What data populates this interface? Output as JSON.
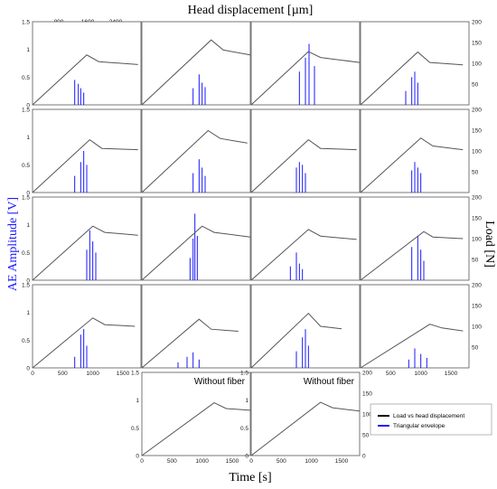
{
  "figure": {
    "title": "Head displacement [µm]",
    "xlabel": "Time [s]",
    "ylabel_left": "AE Amplitude [V]",
    "ylabel_right": "Load [N]",
    "top_axis_ticks": [
      "800",
      "1600",
      "2400"
    ],
    "legend": [
      {
        "label": "Load vs head displacement",
        "color": "#000000"
      },
      {
        "label": "Triangular envelope",
        "color": "#0000ff"
      }
    ],
    "colors": {
      "load_curve": "#555555",
      "ae_bars": "#1a1aff",
      "left_axis_labels": "#1a1aff"
    }
  },
  "chart_data": {
    "type": "line",
    "layout": "small-multiples",
    "x_range": [
      0,
      1800
    ],
    "x_ticks": [
      "0",
      "500",
      "1000",
      "1500"
    ],
    "y_left_range": [
      0,
      1.5
    ],
    "y_left_ticks": [
      "0",
      "0.5",
      "1",
      "1.5"
    ],
    "y_right_range": [
      0,
      200
    ],
    "y_right_ticks": [
      "50",
      "100",
      "150",
      "200"
    ],
    "panels": [
      {
        "load": [
          [
            0,
            0
          ],
          [
            900,
            120
          ],
          [
            1100,
            104
          ],
          [
            1750,
            97
          ]
        ],
        "ae": [
          [
            700,
            0.45
          ],
          [
            760,
            0.38
          ],
          [
            800,
            0.3
          ],
          [
            850,
            0.22
          ]
        ]
      },
      {
        "load": [
          [
            0,
            0
          ],
          [
            1150,
            156
          ],
          [
            1350,
            132
          ],
          [
            1800,
            120
          ]
        ],
        "ae": [
          [
            850,
            0.3
          ],
          [
            950,
            0.55
          ],
          [
            1000,
            0.4
          ],
          [
            1050,
            0.32
          ]
        ]
      },
      {
        "load": [
          [
            0,
            0
          ],
          [
            950,
            128
          ],
          [
            1150,
            114
          ],
          [
            1800,
            102
          ]
        ],
        "ae": [
          [
            800,
            0.6
          ],
          [
            900,
            0.85
          ],
          [
            960,
            1.1
          ],
          [
            1050,
            0.7
          ]
        ]
      },
      {
        "load": [
          [
            0,
            0
          ],
          [
            950,
            127
          ],
          [
            1150,
            102
          ],
          [
            1700,
            96
          ]
        ],
        "ae": [
          [
            750,
            0.25
          ],
          [
            850,
            0.5
          ],
          [
            900,
            0.6
          ],
          [
            950,
            0.4
          ]
        ]
      },
      {
        "load": [
          [
            0,
            0
          ],
          [
            950,
            127
          ],
          [
            1150,
            106
          ],
          [
            1750,
            103
          ]
        ],
        "ae": [
          [
            700,
            0.3
          ],
          [
            800,
            0.55
          ],
          [
            850,
            0.75
          ],
          [
            900,
            0.5
          ]
        ]
      },
      {
        "load": [
          [
            0,
            0
          ],
          [
            1100,
            149
          ],
          [
            1300,
            130
          ],
          [
            1750,
            119
          ]
        ],
        "ae": [
          [
            850,
            0.35
          ],
          [
            950,
            0.6
          ],
          [
            1000,
            0.45
          ],
          [
            1050,
            0.3
          ]
        ]
      },
      {
        "load": [
          [
            0,
            0
          ],
          [
            950,
            127
          ],
          [
            1150,
            106
          ],
          [
            1750,
            103
          ]
        ],
        "ae": [
          [
            750,
            0.45
          ],
          [
            800,
            0.55
          ],
          [
            850,
            0.5
          ],
          [
            900,
            0.35
          ]
        ]
      },
      {
        "load": [
          [
            0,
            0
          ],
          [
            1000,
            131
          ],
          [
            1200,
            112
          ],
          [
            1700,
            103
          ]
        ],
        "ae": [
          [
            850,
            0.4
          ],
          [
            900,
            0.55
          ],
          [
            950,
            0.45
          ],
          [
            1000,
            0.35
          ]
        ]
      },
      {
        "load": [
          [
            0,
            0
          ],
          [
            1000,
            130
          ],
          [
            1200,
            115
          ],
          [
            1750,
            108
          ]
        ],
        "ae": [
          [
            900,
            0.55
          ],
          [
            950,
            0.9
          ],
          [
            1000,
            0.7
          ],
          [
            1050,
            0.5
          ]
        ]
      },
      {
        "load": [
          [
            0,
            0
          ],
          [
            1000,
            130
          ],
          [
            1200,
            115
          ],
          [
            1800,
            104
          ]
        ],
        "ae": [
          [
            800,
            0.4
          ],
          [
            850,
            0.75
          ],
          [
            880,
            1.2
          ],
          [
            920,
            0.8
          ]
        ]
      },
      {
        "load": [
          [
            0,
            0
          ],
          [
            950,
            122
          ],
          [
            1150,
            106
          ],
          [
            1750,
            98
          ]
        ],
        "ae": [
          [
            650,
            0.25
          ],
          [
            750,
            0.5
          ],
          [
            800,
            0.3
          ],
          [
            850,
            0.2
          ]
        ]
      },
      {
        "load": [
          [
            0,
            0
          ],
          [
            1050,
            117
          ],
          [
            1200,
            104
          ],
          [
            1700,
            100
          ]
        ],
        "ae": [
          [
            850,
            0.6
          ],
          [
            950,
            0.8
          ],
          [
            1000,
            0.55
          ],
          [
            1050,
            0.35
          ]
        ]
      },
      {
        "load": [
          [
            0,
            0
          ],
          [
            1000,
            120
          ],
          [
            1200,
            104
          ],
          [
            1700,
            100
          ]
        ],
        "ae": [
          [
            700,
            0.2
          ],
          [
            800,
            0.6
          ],
          [
            850,
            0.7
          ],
          [
            900,
            0.4
          ]
        ]
      },
      {
        "load": [
          [
            0,
            0
          ],
          [
            950,
            117
          ],
          [
            1150,
            93
          ],
          [
            1600,
            88
          ]
        ],
        "ae": [
          [
            600,
            0.1
          ],
          [
            750,
            0.2
          ],
          [
            850,
            0.28
          ],
          [
            950,
            0.15
          ]
        ]
      },
      {
        "load": [
          [
            0,
            0
          ],
          [
            950,
            131
          ],
          [
            1150,
            100
          ],
          [
            1500,
            94
          ]
        ],
        "ae": [
          [
            750,
            0.3
          ],
          [
            850,
            0.55
          ],
          [
            900,
            0.7
          ],
          [
            950,
            0.4
          ]
        ]
      },
      {
        "load": [
          [
            0,
            0
          ],
          [
            1150,
            105
          ],
          [
            1350,
            96
          ],
          [
            1700,
            89
          ]
        ],
        "ae": [
          [
            800,
            0.15
          ],
          [
            900,
            0.35
          ],
          [
            1000,
            0.25
          ],
          [
            1100,
            0.18
          ]
        ]
      },
      {
        "annotation": "Without fiber",
        "load": [
          [
            0,
            0
          ],
          [
            1200,
            127
          ],
          [
            1400,
            113
          ],
          [
            1800,
            109
          ]
        ],
        "ae": []
      },
      {
        "annotation": "Without fiber",
        "load": [
          [
            0,
            0
          ],
          [
            1150,
            128
          ],
          [
            1350,
            115
          ],
          [
            1800,
            107
          ]
        ],
        "ae": []
      }
    ]
  }
}
